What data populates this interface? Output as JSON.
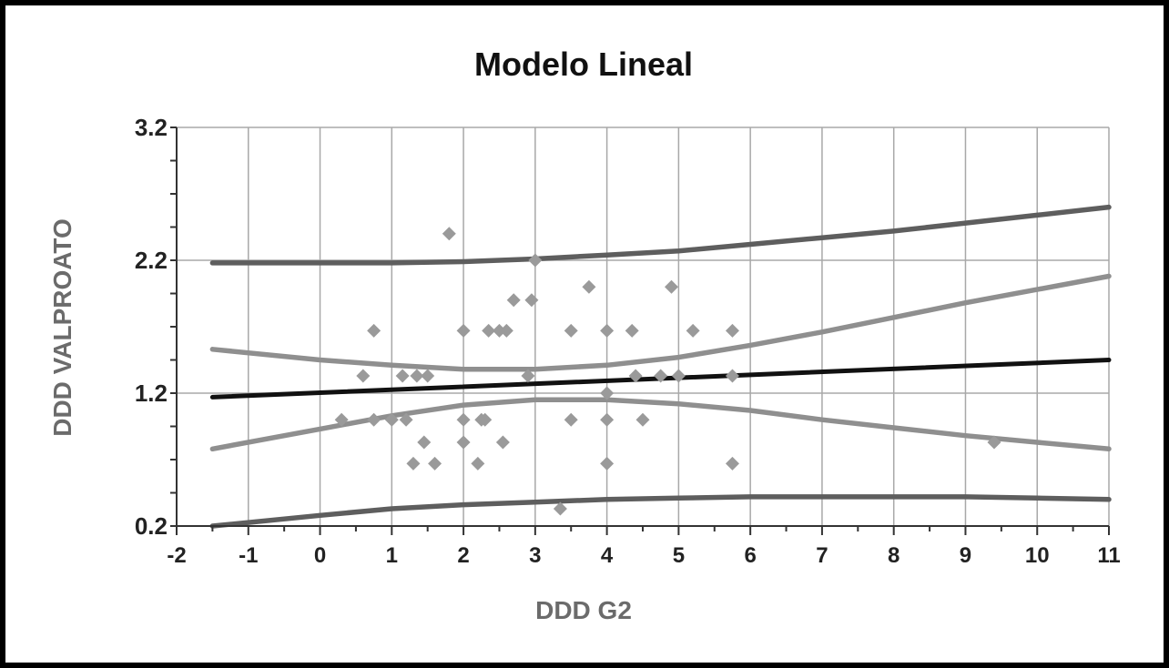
{
  "chart_data": {
    "type": "scatter",
    "title": "Modelo Lineal",
    "xlabel": "DDD G2",
    "ylabel": "DDD VALPROATO",
    "xlim": [
      -2,
      11
    ],
    "ylim": [
      0.2,
      3.2
    ],
    "x_ticks": [
      "-2",
      "-1",
      "0",
      "1",
      "2",
      "3",
      "4",
      "5",
      "6",
      "7",
      "8",
      "9",
      "10",
      "11"
    ],
    "y_ticks": [
      "0.2",
      "1.2",
      "2.2",
      "3.2"
    ],
    "grid": true,
    "series": [
      {
        "kind": "points",
        "color": "#9a9a9a",
        "points": [
          [
            0.3,
            1.0
          ],
          [
            0.6,
            1.33
          ],
          [
            0.75,
            1.67
          ],
          [
            0.75,
            1.0
          ],
          [
            1.0,
            1.0
          ],
          [
            1.15,
            1.33
          ],
          [
            1.2,
            1.0
          ],
          [
            1.3,
            0.67
          ],
          [
            1.35,
            1.33
          ],
          [
            1.45,
            0.83
          ],
          [
            1.5,
            1.33
          ],
          [
            1.6,
            0.67
          ],
          [
            1.8,
            2.4
          ],
          [
            2.0,
            1.67
          ],
          [
            2.0,
            1.0
          ],
          [
            2.0,
            0.83
          ],
          [
            2.2,
            0.67
          ],
          [
            2.25,
            1.0
          ],
          [
            2.3,
            1.0
          ],
          [
            2.35,
            1.67
          ],
          [
            2.5,
            1.67
          ],
          [
            2.55,
            0.83
          ],
          [
            2.6,
            1.67
          ],
          [
            2.7,
            1.9
          ],
          [
            2.9,
            1.33
          ],
          [
            2.95,
            1.9
          ],
          [
            3.0,
            2.2
          ],
          [
            3.35,
            0.33
          ],
          [
            3.5,
            1.67
          ],
          [
            3.5,
            1.0
          ],
          [
            3.75,
            2.0
          ],
          [
            4.0,
            1.67
          ],
          [
            4.0,
            1.2
          ],
          [
            4.0,
            1.0
          ],
          [
            4.0,
            0.67
          ],
          [
            4.35,
            1.67
          ],
          [
            4.4,
            1.33
          ],
          [
            4.5,
            1.0
          ],
          [
            4.75,
            1.33
          ],
          [
            4.9,
            2.0
          ],
          [
            5.0,
            1.33
          ],
          [
            5.2,
            1.67
          ],
          [
            5.75,
            1.67
          ],
          [
            5.75,
            1.33
          ],
          [
            5.75,
            0.67
          ],
          [
            9.4,
            0.83
          ]
        ]
      },
      {
        "kind": "line",
        "color": "#111111",
        "x": [
          -1.5,
          11
        ],
        "y": [
          1.17,
          1.45
        ]
      },
      {
        "kind": "line",
        "color": "#8f8f8f",
        "x": [
          -1.5,
          0,
          1,
          2,
          3,
          4,
          5,
          6,
          7,
          8,
          9,
          10,
          11
        ],
        "y": [
          1.53,
          1.45,
          1.41,
          1.38,
          1.38,
          1.41,
          1.47,
          1.56,
          1.66,
          1.77,
          1.88,
          1.98,
          2.08
        ]
      },
      {
        "kind": "line",
        "color": "#8f8f8f",
        "x": [
          -1.5,
          0,
          1,
          2,
          3,
          4,
          5,
          6,
          7,
          8,
          9,
          10,
          11
        ],
        "y": [
          0.78,
          0.93,
          1.03,
          1.11,
          1.15,
          1.15,
          1.12,
          1.07,
          1.0,
          0.94,
          0.88,
          0.83,
          0.78
        ]
      },
      {
        "kind": "line",
        "color": "#5e5e5e",
        "x": [
          -1.5,
          0,
          1,
          2,
          3,
          4,
          5,
          6,
          7,
          8,
          9,
          10,
          11
        ],
        "y": [
          2.18,
          2.18,
          2.18,
          2.19,
          2.21,
          2.24,
          2.27,
          2.32,
          2.37,
          2.42,
          2.48,
          2.54,
          2.6
        ]
      },
      {
        "kind": "line",
        "color": "#5e5e5e",
        "x": [
          -1.5,
          0,
          1,
          2,
          3,
          4,
          5,
          6,
          7,
          8,
          9,
          10,
          11
        ],
        "y": [
          0.2,
          0.28,
          0.33,
          0.36,
          0.38,
          0.4,
          0.41,
          0.42,
          0.42,
          0.42,
          0.42,
          0.41,
          0.4
        ]
      }
    ]
  }
}
